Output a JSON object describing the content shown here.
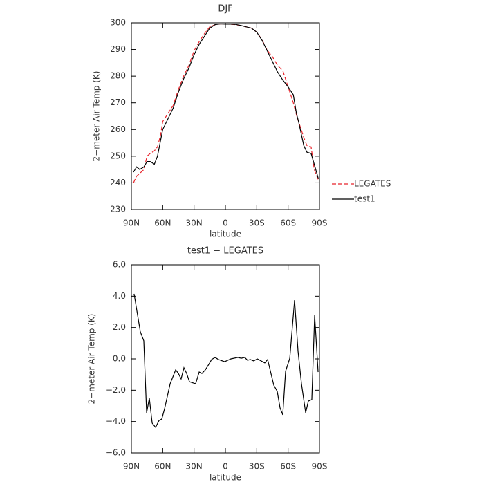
{
  "chart_data": [
    {
      "type": "line",
      "title": "DJF",
      "xlabel": "latitude",
      "ylabel": "2−meter Air Temp (K)",
      "xlim": [
        90,
        -90
      ],
      "xticks": [
        {
          "value": 90,
          "label": "90N"
        },
        {
          "value": 60,
          "label": "60N"
        },
        {
          "value": 30,
          "label": "30N"
        },
        {
          "value": 0,
          "label": "0"
        },
        {
          "value": -30,
          "label": "30S"
        },
        {
          "value": -60,
          "label": "60S"
        },
        {
          "value": -90,
          "label": "90S"
        }
      ],
      "ylim": [
        230,
        300
      ],
      "yticks": [
        230,
        240,
        250,
        260,
        270,
        280,
        290,
        300
      ],
      "x": [
        88,
        85,
        82,
        78,
        75,
        72,
        68,
        65,
        62,
        60,
        55,
        50,
        45,
        40,
        35,
        30,
        25,
        20,
        15,
        10,
        5,
        0,
        -5,
        -10,
        -15,
        -20,
        -25,
        -30,
        -35,
        -40,
        -45,
        -50,
        -55,
        -60,
        -65,
        -68,
        -70,
        -75,
        -78,
        -82,
        -85,
        -89
      ],
      "series": [
        {
          "name": "LEGATES",
          "color": "#e8232a",
          "dash": true,
          "values": [
            240,
            242.5,
            243.5,
            245,
            250,
            251,
            252,
            253.5,
            258,
            263,
            266,
            269,
            275,
            280,
            284,
            289.5,
            293,
            296,
            298.5,
            299.3,
            299.6,
            299.6,
            299.5,
            299.3,
            299,
            298.5,
            298,
            296.5,
            293.7,
            289.7,
            287.3,
            284,
            282,
            276,
            270,
            265.5,
            263,
            257,
            254,
            253.5,
            245,
            241
          ]
        },
        {
          "name": "test1",
          "color": "#000000",
          "dash": false,
          "values": [
            244,
            246,
            245,
            246,
            248,
            248,
            247,
            250,
            256,
            260,
            264,
            268,
            274,
            279,
            283,
            288,
            292,
            295,
            298,
            299.3,
            299.6,
            299.5,
            299.5,
            299.4,
            299,
            298.5,
            298,
            296.5,
            293.5,
            289.5,
            285.5,
            281.5,
            278.5,
            276,
            273,
            266,
            263,
            254,
            251.5,
            251,
            247,
            241.5
          ]
        }
      ]
    },
    {
      "type": "line",
      "title": "test1 − LEGATES",
      "xlabel": "latitude",
      "ylabel": "2−meter Air Temp (K)",
      "xlim": [
        90,
        -90
      ],
      "xticks": [
        {
          "value": 90,
          "label": "90N"
        },
        {
          "value": 60,
          "label": "60N"
        },
        {
          "value": 30,
          "label": "30N"
        },
        {
          "value": 0,
          "label": "0"
        },
        {
          "value": -30,
          "label": "30S"
        },
        {
          "value": -60,
          "label": "60S"
        },
        {
          "value": -90,
          "label": "90S"
        }
      ],
      "ylim": [
        -6,
        6
      ],
      "yticks": [
        {
          "value": -6,
          "label": "−6.0"
        },
        {
          "value": -4,
          "label": "−4.0"
        },
        {
          "value": -2,
          "label": "−2.0"
        },
        {
          "value": 0,
          "label": "0.0"
        },
        {
          "value": 2,
          "label": "2.0"
        },
        {
          "value": 4,
          "label": "4.0"
        },
        {
          "value": 6,
          "label": "6.0"
        }
      ],
      "x": [
        87.4,
        81.4,
        78.1,
        75.4,
        72.8,
        70.1,
        66.8,
        63.5,
        60.9,
        58.2,
        52.9,
        47.6,
        45,
        42.4,
        39.7,
        37.1,
        34.4,
        28.5,
        25.1,
        22.5,
        19.2,
        15.9,
        13.2,
        9.9,
        6.6,
        0.7,
        -5.3,
        -11.9,
        -15.2,
        -18.5,
        -21.2,
        -23.8,
        -27.1,
        -30.5,
        -33.1,
        -37.7,
        -40.4,
        -46.3,
        -49.6,
        -52.3,
        -54.9,
        -57.6,
        -61.6,
        -66.2,
        -69.5,
        -72.8,
        -76.8,
        -79.4,
        -82.7,
        -85.4,
        -88.7
      ],
      "series": [
        {
          "color": "#000000",
          "dash": false,
          "values": [
            4.15,
            1.72,
            1.15,
            -3.44,
            -2.51,
            -4.1,
            -4.37,
            -3.93,
            -3.84,
            -3.18,
            -1.59,
            -0.7,
            -0.93,
            -1.28,
            -0.57,
            -0.93,
            -1.46,
            -1.59,
            -0.84,
            -0.93,
            -0.7,
            -0.35,
            -0.04,
            0.09,
            -0.04,
            -0.18,
            0,
            0.09,
            0.04,
            0.09,
            -0.09,
            -0.04,
            -0.13,
            0,
            -0.09,
            -0.26,
            -0.04,
            -1.68,
            -2.07,
            -3.13,
            -3.57,
            -0.79,
            0.04,
            3.75,
            0.49,
            -1.59,
            -3.44,
            -2.69,
            -2.6,
            2.78,
            -0.84
          ]
        }
      ]
    }
  ]
}
